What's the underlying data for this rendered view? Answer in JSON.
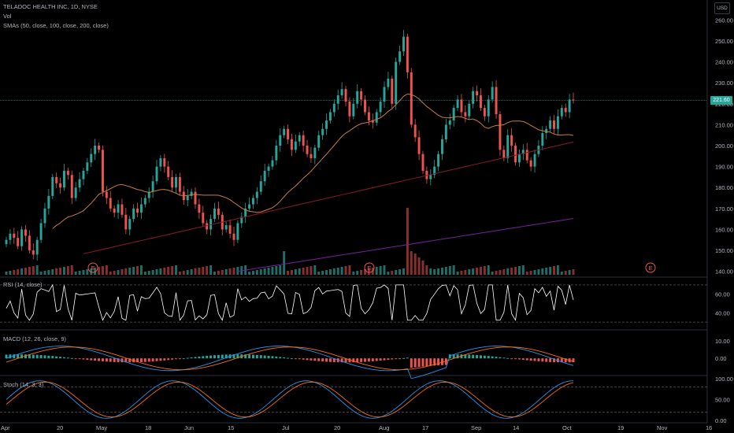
{
  "header": {
    "symbol_line": "TELADOC HEALTH INC, 1D, NYSE",
    "vol_label": "Vol",
    "sma_label": "SMAs (50, close, 100, close, 200, close)",
    "currency_button": "USD",
    "last_price_tag": "221.60"
  },
  "panes": {
    "rsi_label": "RSI (14, close)",
    "macd_label": "MACD (12, 26, close, 9)",
    "stoch_label": "Stoch (14, 3, 3)"
  },
  "price_axis_ticks": [
    "260.00",
    "250.00",
    "240.00",
    "230.00",
    "220.00",
    "210.00",
    "200.00",
    "190.00",
    "180.00",
    "170.00",
    "160.00",
    "150.00",
    "140.00"
  ],
  "rsi_axis_ticks": [
    "60.00",
    "40.00"
  ],
  "macd_axis_ticks": [
    "10.00",
    "0.00"
  ],
  "stoch_axis_ticks": [
    "100.00",
    "50.00",
    "0.00"
  ],
  "time_axis_ticks": [
    "Apr",
    "20",
    "May",
    "18",
    "Jun",
    "15",
    "Jul",
    "20",
    "Aug",
    "17",
    "Sep",
    "14",
    "Oct",
    "19",
    "Nov",
    "16"
  ],
  "earnings_markers": [
    "E",
    "E",
    "E"
  ],
  "colors": {
    "up": "#26a69a",
    "down": "#ef5350",
    "sma50": "#c77d3a",
    "sma100": "#8b1a2b",
    "sma200": "#7b1fa2",
    "macd": "#2196f3",
    "signal": "#ff6d00",
    "rsi": "#ffffff"
  },
  "chart_data": {
    "type": "candlestick",
    "title": "TELADOC HEALTH INC, 1D, NYSE",
    "ylim": [
      138,
      262
    ],
    "closes": [
      155,
      158,
      156,
      152,
      160,
      157,
      150,
      148,
      155,
      163,
      170,
      176,
      185,
      182,
      180,
      188,
      186,
      175,
      180,
      184,
      188,
      192,
      196,
      200,
      198,
      178,
      175,
      170,
      168,
      172,
      167,
      160,
      165,
      170,
      168,
      172,
      175,
      178,
      183,
      190,
      194,
      190,
      185,
      180,
      185,
      178,
      174,
      176,
      178,
      172,
      168,
      163,
      160,
      165,
      170,
      167,
      160,
      162,
      158,
      155,
      163,
      166,
      170,
      172,
      175,
      178,
      183,
      188,
      190,
      193,
      200,
      205,
      208,
      203,
      198,
      202,
      205,
      200,
      196,
      194,
      199,
      205,
      208,
      212,
      216,
      220,
      224,
      227,
      221,
      214,
      220,
      226,
      222,
      216,
      212,
      211,
      216,
      221,
      228,
      232,
      220,
      240,
      245,
      252,
      235,
      210,
      204,
      196,
      188,
      184,
      186,
      190,
      196,
      203,
      210,
      212,
      218,
      222,
      216,
      214,
      220,
      226,
      224,
      218,
      214,
      222,
      228,
      215,
      198,
      194,
      205,
      200,
      192,
      196,
      198,
      193,
      190,
      196,
      200,
      206,
      208,
      212,
      208,
      214,
      218,
      216,
      222,
      221.6
    ],
    "rsi_range": [
      25,
      75
    ],
    "macd_range": [
      -8,
      14
    ],
    "stoch_range": [
      0,
      100
    ]
  }
}
